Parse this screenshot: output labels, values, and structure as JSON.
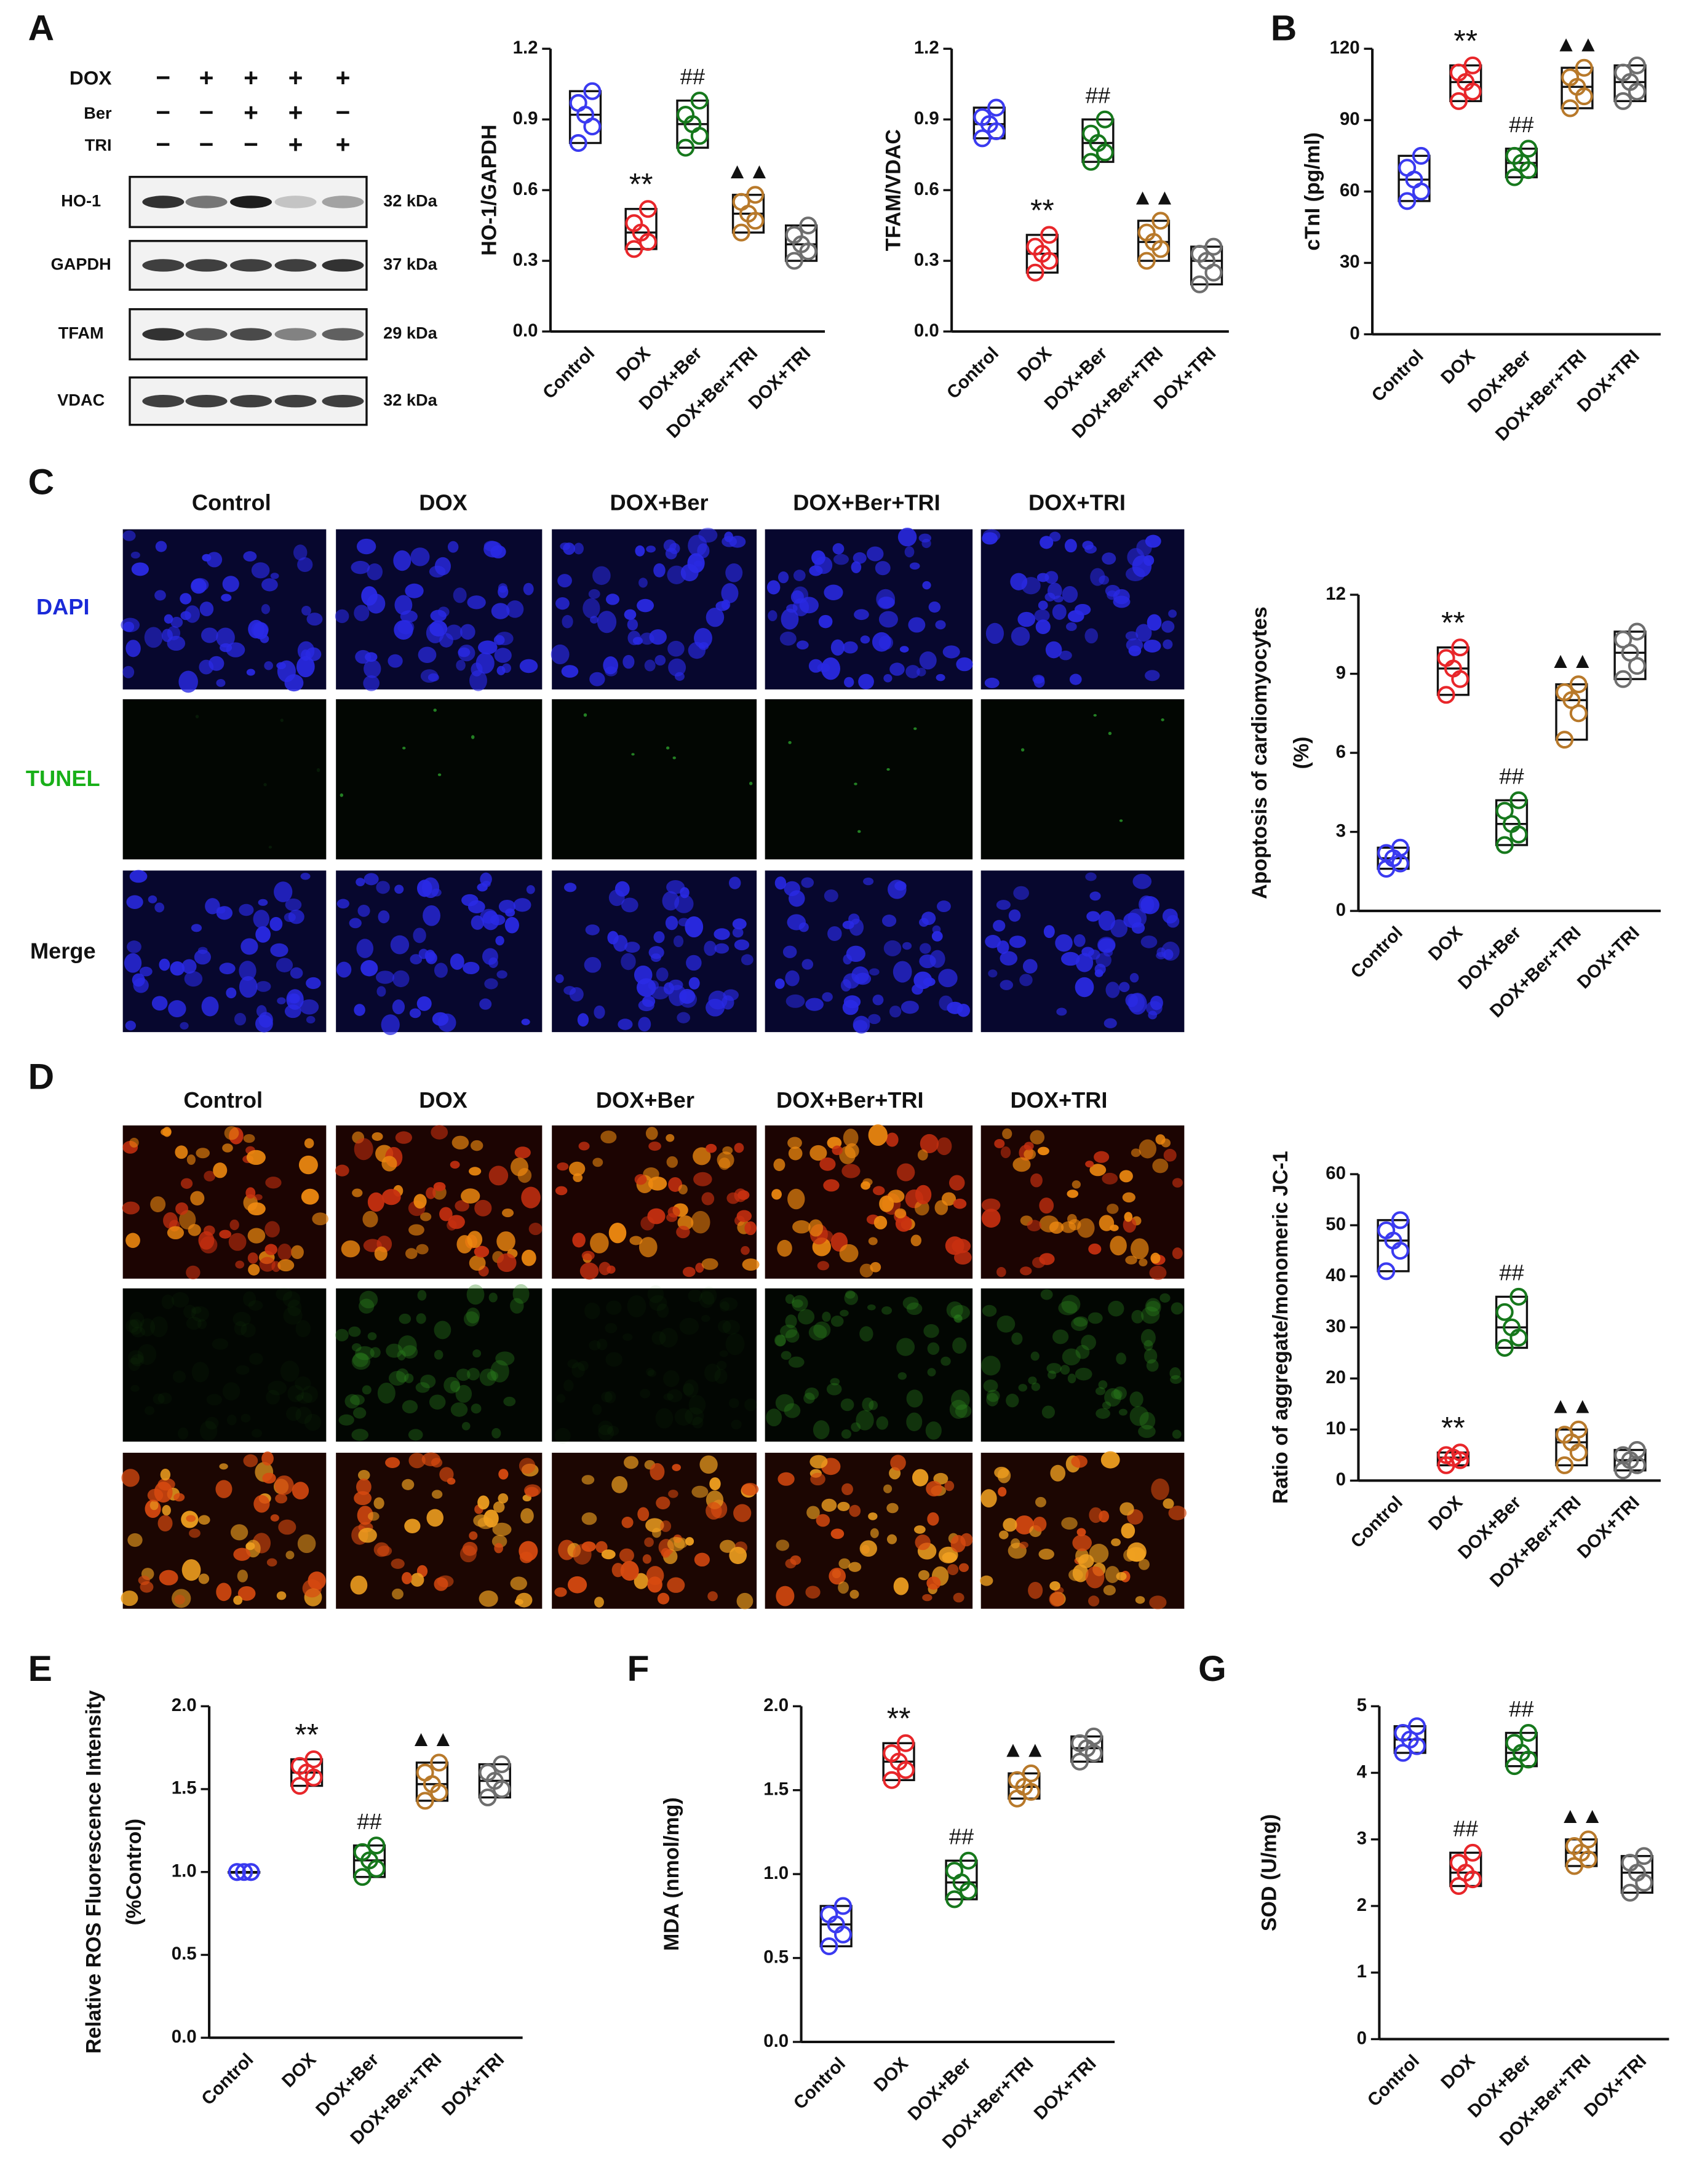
{
  "panel_labels": [
    "A",
    "B",
    "C",
    "D",
    "E",
    "F",
    "G"
  ],
  "blot": {
    "treatments": [
      {
        "label": "DOX",
        "signs": [
          "−",
          "+",
          "+",
          "+",
          "+"
        ]
      },
      {
        "label": "Ber",
        "signs": [
          "−",
          "−",
          "+",
          "+",
          "−"
        ]
      },
      {
        "label": "TRI",
        "signs": [
          "−",
          "−",
          "−",
          "+",
          "+"
        ]
      }
    ],
    "bands": [
      {
        "label": "HO-1",
        "size": "32 kDa"
      },
      {
        "label": "GAPDH",
        "size": "37 kDa"
      },
      {
        "label": "TFAM",
        "size": "29 kDa"
      },
      {
        "label": "VDAC",
        "size": "32 kDa"
      }
    ]
  },
  "micrographs": {
    "C": {
      "columns": [
        "Control",
        "DOX",
        "DOX+Ber",
        "DOX+Ber+TRI",
        "DOX+TRI"
      ],
      "rows": [
        "DAPI",
        "TUNEL",
        "Merge"
      ]
    },
    "D": {
      "columns": [
        "Control",
        "DOX",
        "DOX+Ber",
        "DOX+Ber+TRI",
        "DOX+TRI"
      ]
    }
  },
  "colors": [
    "#3a3af0",
    "#e8262a",
    "#16781c",
    "#b8792a",
    "#6e6e6e"
  ],
  "chart_data": [
    {
      "type": "box",
      "ylabel": [
        "HO-1/GAPDH"
      ],
      "categories": [
        "Control",
        "DOX",
        "DOX+Ber",
        "DOX+Ber+TRI",
        "DOX+TRI"
      ],
      "groups": [
        {
          "values": [
            0.8,
            0.87,
            0.92,
            0.97,
            1.02
          ]
        },
        {
          "values": [
            0.35,
            0.38,
            0.42,
            0.46,
            0.52
          ]
        },
        {
          "values": [
            0.78,
            0.83,
            0.88,
            0.92,
            0.98
          ]
        },
        {
          "values": [
            0.42,
            0.47,
            0.5,
            0.55,
            0.58
          ]
        },
        {
          "values": [
            0.3,
            0.34,
            0.37,
            0.41,
            0.45
          ]
        }
      ],
      "annotations": [
        null,
        "**",
        "##",
        "▲▲",
        null
      ],
      "ylim": [
        0,
        1.2
      ],
      "yticks": [
        {
          "value": 0,
          "label": "0.0"
        },
        0.3,
        0.6,
        0.9,
        1.2
      ]
    },
    {
      "type": "box",
      "ylabel": [
        "TFAM/VDAC"
      ],
      "categories": [
        "Control",
        "DOX",
        "DOX+Ber",
        "DOX+Ber+TRI",
        "DOX+TRI"
      ],
      "groups": [
        {
          "values": [
            0.82,
            0.85,
            0.88,
            0.91,
            0.95
          ]
        },
        {
          "values": [
            0.25,
            0.3,
            0.33,
            0.36,
            0.41
          ]
        },
        {
          "values": [
            0.72,
            0.76,
            0.8,
            0.84,
            0.9
          ]
        },
        {
          "values": [
            0.3,
            0.35,
            0.38,
            0.42,
            0.47
          ]
        },
        {
          "values": [
            0.2,
            0.25,
            0.3,
            0.33,
            0.36
          ]
        }
      ],
      "annotations": [
        null,
        "**",
        "##",
        "▲▲",
        null
      ],
      "ylim": [
        0,
        1.2
      ],
      "yticks": [
        {
          "value": 0,
          "label": "0.0"
        },
        0.3,
        0.6,
        0.9,
        1.2
      ]
    },
    {
      "type": "box",
      "ylabel": [
        "cTnI (pg/ml)"
      ],
      "categories": [
        "Control",
        "DOX",
        "DOX+Ber",
        "DOX+Ber+TRI",
        "DOX+TRI"
      ],
      "groups": [
        {
          "values": [
            56,
            60,
            65,
            70,
            75
          ]
        },
        {
          "values": [
            98,
            102,
            106,
            110,
            113
          ]
        },
        {
          "values": [
            66,
            69,
            72,
            75,
            78
          ]
        },
        {
          "values": [
            95,
            100,
            104,
            108,
            112
          ]
        },
        {
          "values": [
            98,
            102,
            106,
            110,
            113
          ]
        }
      ],
      "annotations": [
        null,
        "**",
        "##",
        "▲▲",
        null
      ],
      "ylim": [
        0,
        120
      ],
      "yticks": [
        0,
        30,
        60,
        90,
        120
      ]
    },
    {
      "type": "box",
      "ylabel": [
        "Apoptosis of cardiomyocytes",
        "(%)"
      ],
      "categories": [
        "Control",
        "DOX",
        "DOX+Ber",
        "DOX+Ber+TRI",
        "DOX+TRI"
      ],
      "groups": [
        {
          "values": [
            1.6,
            1.8,
            2.0,
            2.2,
            2.4
          ]
        },
        {
          "values": [
            8.2,
            8.8,
            9.2,
            9.6,
            10.0
          ]
        },
        {
          "values": [
            2.5,
            2.9,
            3.3,
            3.8,
            4.2
          ]
        },
        {
          "values": [
            6.5,
            7.5,
            8.0,
            8.3,
            8.6
          ]
        },
        {
          "values": [
            8.8,
            9.3,
            9.8,
            10.3,
            10.6
          ]
        }
      ],
      "annotations": [
        null,
        "**",
        "##",
        "▲▲",
        null
      ],
      "ylim": [
        0,
        12
      ],
      "yticks": [
        0,
        3,
        6,
        9,
        12
      ]
    },
    {
      "type": "box",
      "ylabel": [
        "Ratio of aggregate/monomeric JC-1"
      ],
      "categories": [
        "Control",
        "DOX",
        "DOX+Ber",
        "DOX+Ber+TRI",
        "DOX+TRI"
      ],
      "groups": [
        {
          "values": [
            41,
            45,
            47,
            49,
            51
          ]
        },
        {
          "values": [
            3,
            4,
            4.5,
            5,
            5.5
          ]
        },
        {
          "values": [
            26,
            28,
            30,
            33,
            36
          ]
        },
        {
          "values": [
            3,
            5.5,
            7.5,
            9,
            10
          ]
        },
        {
          "values": [
            2,
            3,
            4,
            5,
            6
          ]
        }
      ],
      "annotations": [
        null,
        "**",
        "##",
        "▲▲",
        null
      ],
      "ylim": [
        0,
        60
      ],
      "yticks": [
        0,
        10,
        20,
        30,
        40,
        50,
        60
      ]
    },
    {
      "type": "box",
      "ylabel": [
        "Relative ROS Fluorescence Intensity",
        "(%Control)"
      ],
      "categories": [
        "Control",
        "DOX",
        "DOX+Ber",
        "DOX+Ber+TRI",
        "DOX+TRI"
      ],
      "groups": [
        {
          "values": [
            1,
            1,
            1,
            1,
            1
          ]
        },
        {
          "values": [
            1.52,
            1.57,
            1.6,
            1.64,
            1.68
          ]
        },
        {
          "values": [
            0.97,
            1.02,
            1.07,
            1.12,
            1.16
          ]
        },
        {
          "values": [
            1.43,
            1.48,
            1.53,
            1.6,
            1.66
          ]
        },
        {
          "values": [
            1.45,
            1.5,
            1.55,
            1.6,
            1.65
          ]
        }
      ],
      "annotations": [
        null,
        "**",
        "##",
        "▲▲",
        null
      ],
      "ylim": [
        0,
        2
      ],
      "yticks": [
        {
          "value": 0,
          "label": "0.0"
        },
        0.5,
        {
          "value": 1,
          "label": "1.0"
        },
        1.5,
        {
          "value": 2,
          "label": "2.0"
        }
      ]
    },
    {
      "type": "box",
      "ylabel": [
        "MDA (nmol/mg)"
      ],
      "categories": [
        "Control",
        "DOX",
        "DOX+Ber",
        "DOX+Ber+TRI",
        "DOX+TRI"
      ],
      "groups": [
        {
          "values": [
            0.57,
            0.64,
            0.7,
            0.76,
            0.81
          ]
        },
        {
          "values": [
            1.56,
            1.62,
            1.67,
            1.72,
            1.78
          ]
        },
        {
          "values": [
            0.85,
            0.9,
            0.95,
            1.02,
            1.08
          ]
        },
        {
          "values": [
            1.45,
            1.49,
            1.52,
            1.56,
            1.6
          ]
        },
        {
          "values": [
            1.67,
            1.72,
            1.75,
            1.78,
            1.82
          ]
        }
      ],
      "annotations": [
        null,
        "**",
        "##",
        "▲▲",
        null
      ],
      "ylim": [
        0,
        2
      ],
      "yticks": [
        {
          "value": 0,
          "label": "0.0"
        },
        0.5,
        {
          "value": 1,
          "label": "1.0"
        },
        1.5,
        {
          "value": 2,
          "label": "2.0"
        }
      ]
    },
    {
      "type": "box",
      "ylabel": [
        "SOD (U/mg)"
      ],
      "categories": [
        "Control",
        "DOX",
        "DOX+Ber",
        "DOX+Ber+TRI",
        "DOX+TRI"
      ],
      "groups": [
        {
          "values": [
            4.3,
            4.4,
            4.5,
            4.6,
            4.7
          ]
        },
        {
          "values": [
            2.3,
            2.4,
            2.5,
            2.65,
            2.8
          ]
        },
        {
          "values": [
            4.1,
            4.2,
            4.3,
            4.45,
            4.6
          ]
        },
        {
          "values": [
            2.6,
            2.7,
            2.8,
            2.9,
            3.0
          ]
        },
        {
          "values": [
            2.2,
            2.35,
            2.5,
            2.65,
            2.75
          ]
        }
      ],
      "annotations": [
        null,
        "##",
        "##",
        "▲▲",
        null
      ],
      "ylim": [
        0,
        5
      ],
      "yticks": [
        0,
        1,
        2,
        3,
        4,
        5
      ]
    }
  ]
}
